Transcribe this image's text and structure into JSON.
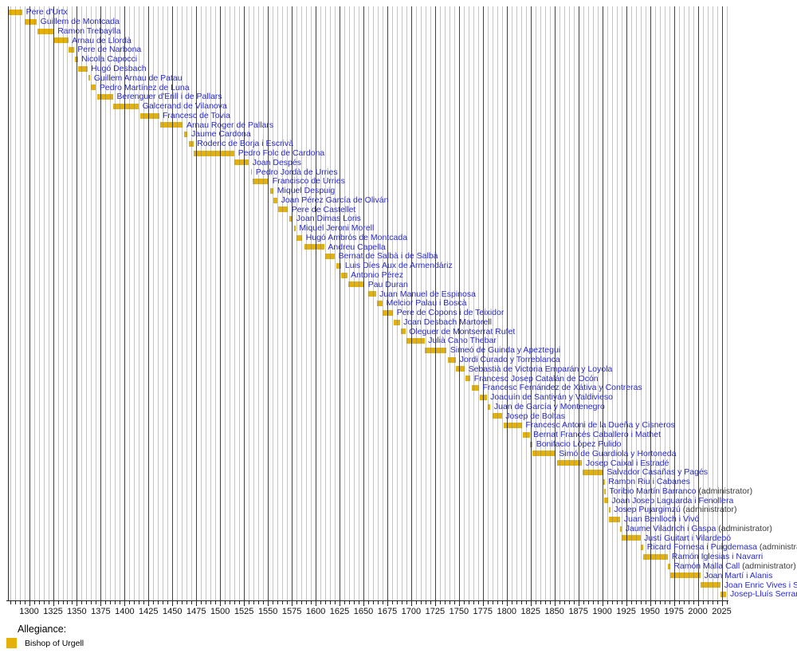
{
  "chart_data": {
    "type": "bar",
    "variant": "timeline-gantt",
    "title": "",
    "xlabel": "",
    "ylabel": "",
    "x_axis": {
      "unit": "year",
      "range": [
        1278,
        2030
      ],
      "minor_tick_step": 5,
      "tick_labels": [
        1300,
        1325,
        1350,
        1375,
        1400,
        1425,
        1450,
        1475,
        1500,
        1525,
        1550,
        1575,
        1600,
        1625,
        1650,
        1675,
        1700,
        1725,
        1750,
        1775,
        1800,
        1825,
        1850,
        1875,
        1900,
        1925,
        1950,
        1975,
        2000,
        2025
      ]
    },
    "grid": "on",
    "legend": {
      "title": "Allegiance:",
      "position": "bottom-left",
      "items": [
        {
          "label": "Bishop of Urgell",
          "color": "#E4B109"
        }
      ]
    },
    "series": [
      {
        "name": "Pere d'Urtx",
        "start": 1269,
        "till": 1293
      },
      {
        "name": "Guillem de Montcada",
        "start": 1295,
        "till": 1308
      },
      {
        "name": "Ramon Trebaylla",
        "start": 1309,
        "till": 1326
      },
      {
        "name": "Arnau de Llordà",
        "start": 1326,
        "till": 1341
      },
      {
        "name": "Pere de Narbona",
        "start": 1341,
        "till": 1347
      },
      {
        "name": "Nicola Capocci",
        "start": 1348,
        "till": 1351
      },
      {
        "name": "Hugó Desbach",
        "start": 1351,
        "till": 1361
      },
      {
        "name": "Guillem Arnau de Patau",
        "start": 1362,
        "till": 1364
      },
      {
        "name": "Pedro Martínez de Luna",
        "start": 1365,
        "till": 1370
      },
      {
        "name": "Berenguer d'Erill i de Pallars",
        "start": 1371,
        "till": 1388
      },
      {
        "name": "Galcerand de Vilanova",
        "start": 1388,
        "till": 1415
      },
      {
        "name": "Francesc de Tovia",
        "start": 1416,
        "till": 1436
      },
      {
        "name": "Arnau Roger de Pallars",
        "start": 1437,
        "till": 1461
      },
      {
        "name": "Jaume Cardona",
        "start": 1462,
        "till": 1466
      },
      {
        "name": "Roderic de Borja i Escrivà",
        "start": 1467,
        "till": 1472
      },
      {
        "name": "Pedro Folc de Cardona",
        "start": 1472,
        "till": 1515
      },
      {
        "name": "Joan Despés",
        "start": 1515,
        "till": 1530
      },
      {
        "name": "Pedro Jordà de Urries",
        "start": 1532,
        "till": 1533
      },
      {
        "name": "Francisco de Urries",
        "start": 1534,
        "till": 1551
      },
      {
        "name": "Miquel Despuig",
        "start": 1552,
        "till": 1556
      },
      {
        "name": "Joan Pérez García de Oliván",
        "start": 1556,
        "till": 1560
      },
      {
        "name": "Pere de Castellet",
        "start": 1561,
        "till": 1571
      },
      {
        "name": "Joan Dimas Loris",
        "start": 1572,
        "till": 1576
      },
      {
        "name": "Miquel Jeroni Morell",
        "start": 1577,
        "till": 1579
      },
      {
        "name": "Hugó Ambrós de Montcada",
        "start": 1580,
        "till": 1586
      },
      {
        "name": "Andreu Capella",
        "start": 1588,
        "till": 1609
      },
      {
        "name": "Bernat de Salbà i de Salbà",
        "start": 1610,
        "till": 1620
      },
      {
        "name": "Luis Díes Aux de Armendáriz",
        "start": 1622,
        "till": 1627
      },
      {
        "name": "Antonio Pérez",
        "start": 1627,
        "till": 1633
      },
      {
        "name": "Pau Duran",
        "start": 1634,
        "till": 1651
      },
      {
        "name": "Juan Manuel de Espinosa",
        "start": 1655,
        "till": 1663
      },
      {
        "name": "Melcior Palau i Boscà",
        "start": 1664,
        "till": 1670
      },
      {
        "name": "Pere de Copons i de Teixidor",
        "start": 1670,
        "till": 1681
      },
      {
        "name": "Joan Desbach Martorell",
        "start": 1682,
        "till": 1688
      },
      {
        "name": "Oleguer de Montserrat Rufet",
        "start": 1689,
        "till": 1694
      },
      {
        "name": "Julià Cano Thebar",
        "start": 1695,
        "till": 1714
      },
      {
        "name": "Simeó de Guinda y Apeztegui",
        "start": 1714,
        "till": 1737
      },
      {
        "name": "Jordi Curado y Torreblanca",
        "start": 1738,
        "till": 1747
      },
      {
        "name": "Sebastià de Victoria Emparán y Loyola",
        "start": 1747,
        "till": 1756
      },
      {
        "name": "Francesc Josep Catalán de Ocón",
        "start": 1757,
        "till": 1762
      },
      {
        "name": "Francesc Fernández de Xátiva y Contreras",
        "start": 1763,
        "till": 1771
      },
      {
        "name": "Joaquín de Santiyán y Valdivieso",
        "start": 1772,
        "till": 1779
      },
      {
        "name": "Juan de García y Montenegro",
        "start": 1780,
        "till": 1783
      },
      {
        "name": "Josep de Boltas",
        "start": 1785,
        "till": 1795
      },
      {
        "name": "Francesc Antoni de la Dueña y Cisneros",
        "start": 1797,
        "till": 1816
      },
      {
        "name": "Bernat Francés Caballero i Mathet",
        "start": 1817,
        "till": 1824
      },
      {
        "name": "Bonifacio López Pulido",
        "start": 1824,
        "till": 1827
      },
      {
        "name": "Simó de Guardiola y Hortoneda",
        "start": 1827,
        "till": 1851
      },
      {
        "name": "Josep Caixal i Estradé",
        "start": 1853,
        "till": 1879
      },
      {
        "name": "Salvador Casañas y Pagés",
        "start": 1879,
        "till": 1901
      },
      {
        "name": "Ramon Riu i Cabanes",
        "start": 1901,
        "till": 1901
      },
      {
        "name": "Toribio Martín Barranco",
        "start": 1902,
        "till": 1902,
        "note": "(administrator)"
      },
      {
        "name": "Joan Josep Laguarda i Fenollera",
        "start": 1902,
        "till": 1906
      },
      {
        "name": "Josep Pujargimzú",
        "start": 1907,
        "till": 1907,
        "note": "(administrator)"
      },
      {
        "name": "Juan Benlloch i Vivó",
        "start": 1907,
        "till": 1919
      },
      {
        "name": "Jaume Viladrich i Gaspa",
        "start": 1919,
        "till": 1920,
        "note": "(administrator)"
      },
      {
        "name": "Justí Guitart i Vilardebó",
        "start": 1920,
        "till": 1940
      },
      {
        "name": "Ricard Fornesa i Puigdemasa",
        "start": 1940,
        "till": 1943,
        "note": "(administra"
      },
      {
        "name": "Ramón Iglesias i Navarri",
        "start": 1943,
        "till": 1969
      },
      {
        "name": "Ramón Malla Call",
        "start": 1969,
        "till": 1971,
        "note": "(administrator)"
      },
      {
        "name": "Joan Martí i Alanis",
        "start": 1971,
        "till": 2003
      },
      {
        "name": "Joan Enric Vives i S",
        "start": 2003,
        "till": 2024
      },
      {
        "name": "Josep-Lluís Serrar",
        "start": 2024,
        "till": 2030
      }
    ]
  },
  "colors": {
    "bar": "#E4B109",
    "name_text": "#2929CC",
    "note_text": "#3a3a3a",
    "grid_minor": "#7d7d7d",
    "grid_major": "#1e1e1e",
    "axis": "#222222",
    "background": "#ffffff"
  }
}
